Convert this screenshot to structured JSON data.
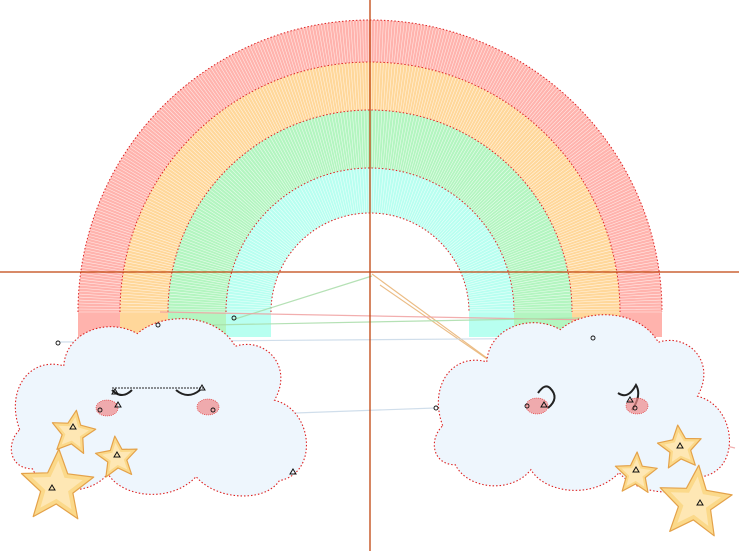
{
  "canvas": {
    "background": "#ffffff",
    "guide_color": "#c0440e",
    "stitch_outline_color": "#dd2222"
  },
  "rainbow": {
    "band_colors": [
      "#ffb3ad",
      "#ffd79a",
      "#b3f5c0",
      "#b8fff0"
    ],
    "band_order": [
      "red-band",
      "orange-band",
      "green-band",
      "cyan-band"
    ]
  },
  "clouds": {
    "fill": "#eef6fd",
    "cheek_color": "#f08a8a",
    "eye_color": "#222222",
    "left_face": "closed-straight-eyes",
    "right_face": "closed-arc-eyes"
  },
  "stars": {
    "fill": "#fbd98a",
    "inner_fill": "#ffeecb",
    "outline": "#e4a24a",
    "left_count": 3,
    "right_count": 3
  },
  "jump_stitch_colors": [
    "#e8b070",
    "#f0a0a0",
    "#a8dca8",
    "#c8d8e8"
  ],
  "icons": [
    "rainbow-icon",
    "cloud-icon",
    "star-icon",
    "crosshair-icon"
  ]
}
